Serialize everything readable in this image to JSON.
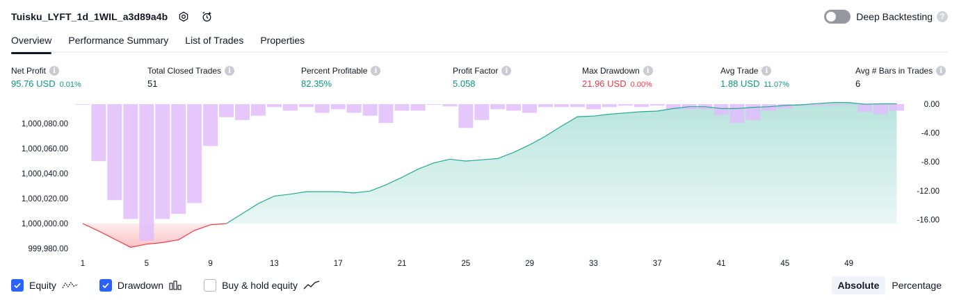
{
  "header": {
    "strategy_name": "Tuisku_LYFT_1d_1WIL_a3d89a4b",
    "deep_backtesting_label": "Deep Backtesting"
  },
  "tabs": [
    "Overview",
    "Performance Summary",
    "List of Trades",
    "Properties"
  ],
  "metrics": {
    "net_profit": {
      "label": "Net Profit",
      "value": "95.76 USD",
      "pct": "0.01%"
    },
    "total_closed_trades": {
      "label": "Total Closed Trades",
      "value": "51"
    },
    "percent_profitable": {
      "label": "Percent Profitable",
      "value": "82.35%"
    },
    "profit_factor": {
      "label": "Profit Factor",
      "value": "5.058"
    },
    "max_drawdown": {
      "label": "Max Drawdown",
      "value": "21.96 USD",
      "pct": "0.00%"
    },
    "avg_trade": {
      "label": "Avg Trade",
      "value": "1.88 USD",
      "pct": "11.07%"
    },
    "avg_bars": {
      "label": "Avg # Bars in Trades",
      "value": "6"
    }
  },
  "colors": {
    "profit": "#089981",
    "loss": "#f23645",
    "equity_line": "#22ab94",
    "drawdown_bar": "#e1bdfb",
    "accent": "#2962ff"
  },
  "chart_data": {
    "type": "area",
    "x_ticks": [
      1,
      5,
      9,
      13,
      17,
      21,
      25,
      29,
      33,
      37,
      41,
      45,
      49
    ],
    "left_axis": {
      "ticks": [
        "1,000,080.00",
        "1,000,060.00",
        "1,000,040.00",
        "1,000,020.00",
        "1,000,000.00",
        "999,980.00"
      ],
      "range": [
        999976,
        1000096
      ]
    },
    "right_axis": {
      "ticks": [
        "0.00",
        "-4.00",
        "-8.00",
        "-12.00",
        "-16.00"
      ],
      "range": [
        -16.0,
        0.0
      ]
    },
    "series": [
      {
        "name": "Equity",
        "x": [
          1,
          2,
          3,
          4,
          5,
          6,
          7,
          8,
          9,
          10,
          11,
          12,
          13,
          14,
          15,
          16,
          17,
          18,
          19,
          20,
          21,
          22,
          23,
          24,
          25,
          26,
          27,
          28,
          29,
          30,
          31,
          32,
          33,
          34,
          35,
          36,
          37,
          38,
          39,
          40,
          41,
          42,
          43,
          44,
          45,
          46,
          47,
          48,
          49,
          50,
          51,
          52
        ],
        "values": [
          1000000.0,
          999994.0,
          999987.5,
          999981.0,
          999983.5,
          999984.8,
          999987.0,
          999994.5,
          999999.0,
          1000000.0,
          1000008.0,
          1000016.0,
          1000022.0,
          1000023.5,
          1000025.5,
          1000025.5,
          1000025.5,
          1000024.5,
          1000026.0,
          1000031.0,
          1000037.0,
          1000043.5,
          1000048.5,
          1000051.5,
          1000050.0,
          1000051.0,
          1000052.0,
          1000057.0,
          1000063.0,
          1000070.0,
          1000078.0,
          1000085.5,
          1000086.0,
          1000087.5,
          1000088.5,
          1000089.5,
          1000090.0,
          1000092.0,
          1000093.5,
          1000093.5,
          1000092.0,
          1000092.0,
          1000093.0,
          1000093.5,
          1000094.5,
          1000095.0,
          1000096.0,
          1000096.8,
          1000096.8,
          1000095.5,
          1000095.8,
          1000095.8
        ]
      },
      {
        "name": "Drawdown",
        "x": [
          1,
          2,
          3,
          4,
          5,
          6,
          7,
          8,
          9,
          10,
          11,
          12,
          13,
          14,
          15,
          16,
          17,
          18,
          19,
          20,
          21,
          22,
          23,
          24,
          25,
          26,
          27,
          28,
          29,
          30,
          31,
          32,
          33,
          34,
          35,
          36,
          37,
          38,
          39,
          40,
          41,
          42,
          43,
          44,
          45,
          46,
          47,
          48,
          49,
          50,
          51,
          52
        ],
        "values": [
          -0.1,
          -7.9,
          -13.3,
          -15.9,
          -18.9,
          -15.9,
          -15.2,
          -13.7,
          -5.8,
          -1.8,
          -2.2,
          -1.6,
          -0.4,
          -0.9,
          -0.4,
          -1.2,
          -0.7,
          -1.2,
          -1.6,
          -2.6,
          -0.9,
          -0.9,
          -0.1,
          -0.3,
          -3.3,
          -2.2,
          -0.7,
          -0.9,
          -1.2,
          -0.4,
          -0.4,
          -0.4,
          -0.7,
          -0.4,
          -0.2,
          -0.4,
          -0.2,
          -0.7,
          -0.7,
          -0.7,
          -1.5,
          -2.6,
          -2.2,
          -0.9,
          -0.6,
          -0.2,
          -0.2,
          -0.2,
          -0.1,
          -1.1,
          -1.4,
          -0.9
        ]
      }
    ]
  },
  "legend": {
    "equity": "Equity",
    "drawdown": "Drawdown",
    "buy_hold": "Buy & hold equity"
  },
  "view_mode": {
    "absolute": "Absolute",
    "percentage": "Percentage"
  }
}
